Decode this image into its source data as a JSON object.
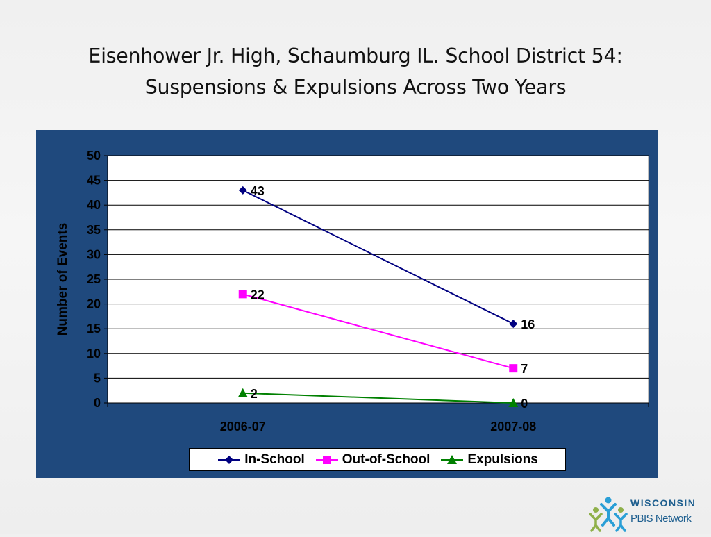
{
  "slide": {
    "title_line1": "Eisenhower Jr. High, Schaumburg  IL. School District 54:",
    "title_line2": "Suspensions & Expulsions Across Two Years"
  },
  "logo": {
    "line1": "WISCONSIN",
    "line2": "PBIS Network"
  },
  "colors": {
    "panel": "#1f497d",
    "in_school": "#000080",
    "out_of_school": "#ff00ff",
    "expulsions": "#008000"
  },
  "chart_data": {
    "type": "line",
    "title": "",
    "xlabel": "",
    "ylabel": "Number of Events",
    "x": [
      "2006-07",
      "2007-08"
    ],
    "ylim": [
      0,
      50
    ],
    "yticks": [
      0,
      5,
      10,
      15,
      20,
      25,
      30,
      35,
      40,
      45,
      50
    ],
    "grid": true,
    "legend": "bottom",
    "series": [
      {
        "name": "In-School",
        "values": [
          43,
          16
        ],
        "marker": "diamond",
        "color": "#000080"
      },
      {
        "name": "Out-of-School",
        "values": [
          22,
          7
        ],
        "marker": "square",
        "color": "#ff00ff"
      },
      {
        "name": "Expulsions",
        "values": [
          2,
          0
        ],
        "marker": "triangle",
        "color": "#008000"
      }
    ]
  }
}
